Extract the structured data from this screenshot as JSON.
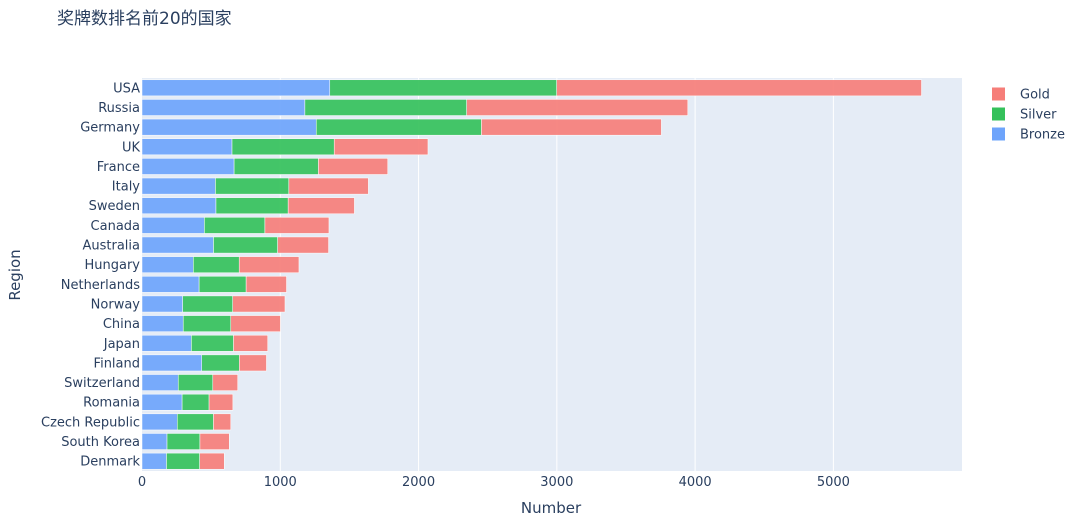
{
  "chart_data": {
    "type": "bar",
    "orientation": "horizontal",
    "barmode": "stack",
    "title": "奖牌数排名前20的国家",
    "xlabel": "Number",
    "ylabel": "Region",
    "xlim": [
      0,
      5930
    ],
    "xticks": [
      "0",
      "1000",
      "2000",
      "3000",
      "4000",
      "5000"
    ],
    "xtick_values": [
      0,
      1000,
      2000,
      3000,
      4000,
      5000
    ],
    "grid": true,
    "legend_position": "top-right",
    "categories": [
      "USA",
      "Russia",
      "Germany",
      "UK",
      "France",
      "Italy",
      "Sweden",
      "Canada",
      "Australia",
      "Hungary",
      "Netherlands",
      "Norway",
      "China",
      "Japan",
      "Finland",
      "Switzerland",
      "Romania",
      "Czech Republic",
      "South Korea",
      "Denmark"
    ],
    "series": [
      {
        "name": "Bronze",
        "color": "#6ea4fb",
        "values": [
          1358,
          1178,
          1260,
          651,
          666,
          531,
          535,
          451,
          517,
          371,
          413,
          294,
          298,
          357,
          432,
          262,
          290,
          255,
          181,
          177
        ]
      },
      {
        "name": "Silver",
        "color": "#35c15b",
        "values": [
          1641,
          1170,
          1195,
          739,
          610,
          531,
          522,
          438,
          464,
          332,
          340,
          362,
          344,
          305,
          272,
          250,
          195,
          262,
          238,
          240
        ]
      },
      {
        "name": "Gold",
        "color": "#f67e79",
        "values": [
          2638,
          1599,
          1301,
          678,
          501,
          575,
          479,
          463,
          368,
          432,
          292,
          378,
          359,
          247,
          196,
          180,
          172,
          125,
          212,
          178
        ]
      }
    ],
    "legend_order": [
      "Gold",
      "Silver",
      "Bronze"
    ]
  }
}
